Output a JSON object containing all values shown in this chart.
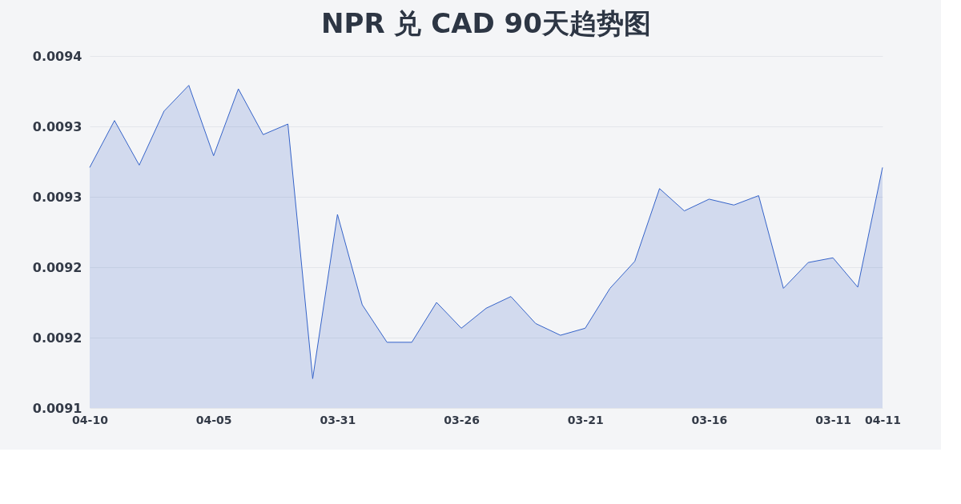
{
  "chart_data": {
    "type": "area",
    "title": "NPR 兑 CAD 90天趋势图",
    "categories": [
      "04-10",
      null,
      null,
      null,
      null,
      "04-05",
      null,
      null,
      null,
      null,
      "03-31",
      null,
      null,
      null,
      null,
      "03-26",
      null,
      null,
      null,
      null,
      "03-21",
      null,
      null,
      null,
      null,
      "03-16",
      null,
      null,
      null,
      null,
      "03-11",
      null,
      "04-11"
    ],
    "series": [
      {
        "color": "#3563c9",
        "values": [
          0.009305,
          0.009345,
          0.009307,
          0.009353,
          0.009375,
          0.009315,
          0.009372,
          0.009333,
          0.009342,
          0.009125,
          0.009265,
          0.009188,
          0.009156,
          0.009156,
          0.00919,
          0.009168,
          0.009185,
          0.009195,
          0.009172,
          0.009162,
          0.009168,
          0.009202,
          0.009225,
          0.009287,
          0.009268,
          0.009278,
          0.009273,
          0.009281,
          0.009202,
          0.009224,
          0.009228,
          0.009203,
          0.009305
        ]
      }
    ],
    "ylim": [
      0.0091,
      0.0094
    ],
    "yticks": [
      {
        "value": 0.0091,
        "label": "0.0091"
      },
      {
        "value": 0.00916,
        "label": "0.0092"
      },
      {
        "value": 0.00922,
        "label": "0.0092"
      },
      {
        "value": 0.00928,
        "label": "0.0093"
      },
      {
        "value": 0.00934,
        "label": "0.0093"
      },
      {
        "value": 0.0094,
        "label": "0.0094"
      }
    ],
    "grid": "y",
    "legend": false
  }
}
